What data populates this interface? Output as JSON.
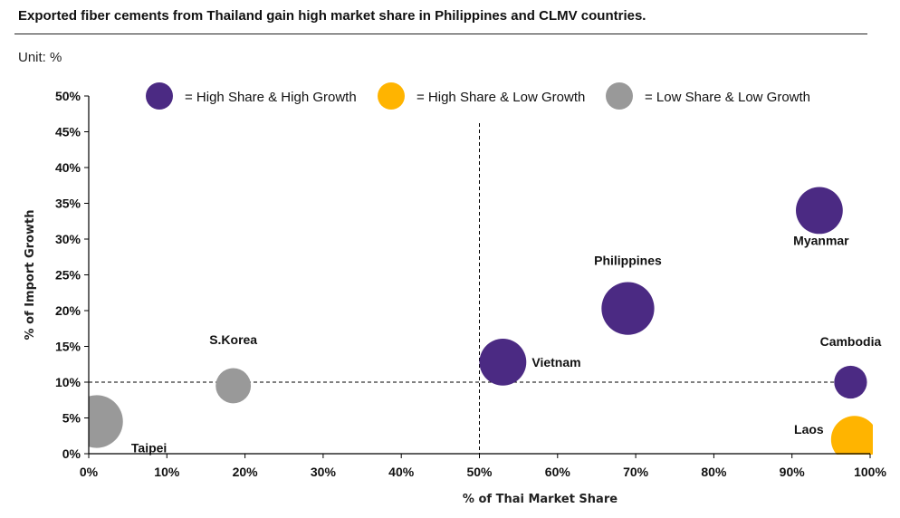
{
  "title": "Exported fiber cements from Thailand gain high market share in Philippines and CLMV countries.",
  "unit_label": "Unit: %",
  "colors": {
    "high_share_high_growth": "#4B2A83",
    "high_share_low_growth": "#FFB400",
    "low_share_low_growth": "#999999"
  },
  "chart_data": {
    "type": "bubble",
    "xlabel": "% of Thai Market Share",
    "ylabel": "% of Import Growth",
    "xlim": [
      0,
      100
    ],
    "ylim": [
      0,
      50
    ],
    "x_ticks": [
      "0%",
      "10%",
      "20%",
      "30%",
      "40%",
      "50%",
      "60%",
      "70%",
      "80%",
      "90%",
      "100%"
    ],
    "y_ticks": [
      "0%",
      "5%",
      "10%",
      "15%",
      "20%",
      "25%",
      "30%",
      "35%",
      "40%",
      "45%",
      "50%"
    ],
    "reference_lines": {
      "x": 50,
      "y": 10
    },
    "grid": false,
    "legend": [
      {
        "key": "high_share_high_growth",
        "label": "= High Share & High Growth"
      },
      {
        "key": "high_share_low_growth",
        "label": "= High Share & Low Growth"
      },
      {
        "key": "low_share_low_growth",
        "label": "= Low Share & Low Growth"
      }
    ],
    "legend_position": "top",
    "points": [
      {
        "name": "Taipei",
        "x": 1.0,
        "y": 4.5,
        "size": 4.5,
        "category": "low_share_low_growth"
      },
      {
        "name": "S.Korea",
        "x": 18.5,
        "y": 9.5,
        "size": 3.0,
        "category": "low_share_low_growth"
      },
      {
        "name": "Vietnam",
        "x": 53.0,
        "y": 12.8,
        "size": 4.0,
        "category": "high_share_high_growth"
      },
      {
        "name": "Philippines",
        "x": 69.0,
        "y": 20.3,
        "size": 4.5,
        "category": "high_share_high_growth"
      },
      {
        "name": "Myanmar",
        "x": 93.5,
        "y": 34.0,
        "size": 4.0,
        "category": "high_share_high_growth"
      },
      {
        "name": "Cambodia",
        "x": 97.5,
        "y": 10.0,
        "size": 2.8,
        "category": "high_share_high_growth"
      },
      {
        "name": "Laos",
        "x": 98.0,
        "y": 2.0,
        "size": 4.0,
        "category": "high_share_low_growth"
      }
    ]
  }
}
